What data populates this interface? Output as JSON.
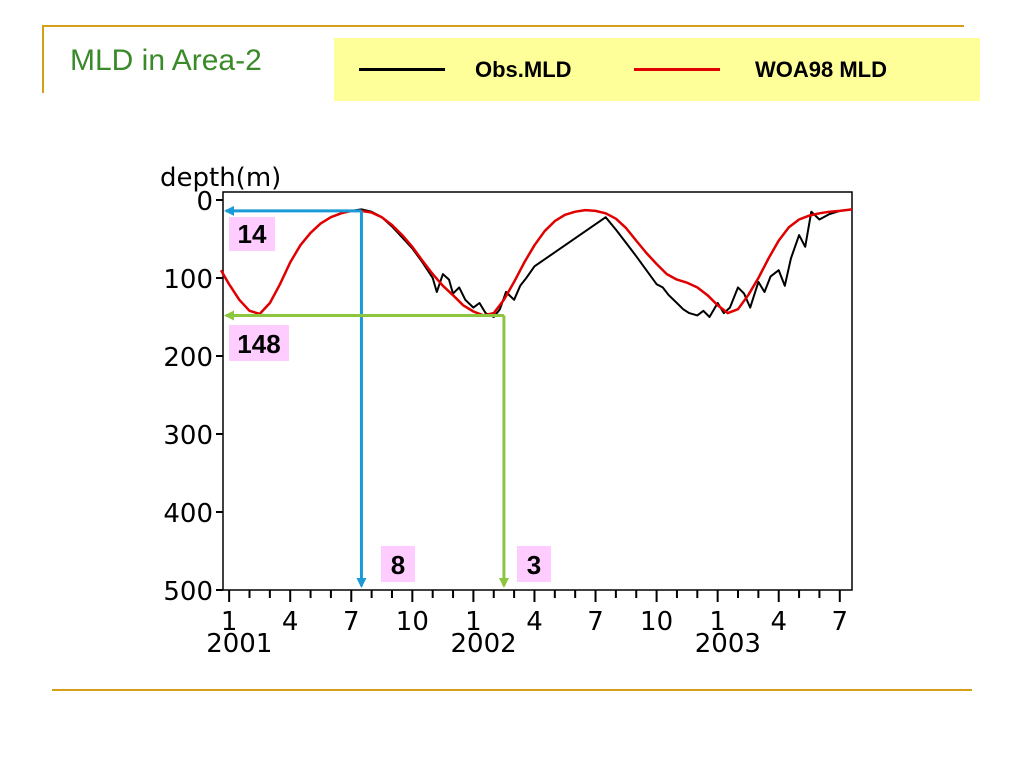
{
  "slide": {
    "title": "MLD in Area-2"
  },
  "legend": {
    "items": [
      {
        "label": "Obs.MLD",
        "color": "#000000"
      },
      {
        "label": "WOA98 MLD",
        "color": "#e00000"
      }
    ]
  },
  "colors": {
    "rule": "#d4a017",
    "title": "#3a8a2a",
    "legend_bg": "#ffff99",
    "callout_bg": "#ffccff",
    "blue_arrow": "#1a9ad6",
    "green_arrow": "#8cc63f"
  },
  "chart_data": {
    "type": "line",
    "ylabel": "depth(m)",
    "ylim": [
      0,
      500
    ],
    "y_inverted": true,
    "y_ticks": [
      0,
      100,
      200,
      300,
      400,
      500
    ],
    "xlim": [
      0.6,
      31.6
    ],
    "x_ticks": [
      {
        "x": 1,
        "label": "1"
      },
      {
        "x": 4,
        "label": "4"
      },
      {
        "x": 7,
        "label": "7"
      },
      {
        "x": 10,
        "label": "10"
      },
      {
        "x": 13,
        "label": "1"
      },
      {
        "x": 16,
        "label": "4"
      },
      {
        "x": 19,
        "label": "7"
      },
      {
        "x": 22,
        "label": "10"
      },
      {
        "x": 25,
        "label": "1"
      },
      {
        "x": 28,
        "label": "4"
      },
      {
        "x": 31,
        "label": "7"
      }
    ],
    "year_labels": [
      {
        "x": 1.5,
        "label": "2001"
      },
      {
        "x": 13.5,
        "label": "2002"
      },
      {
        "x": 25.5,
        "label": "2003"
      }
    ],
    "series": [
      {
        "name": "WOA98 MLD",
        "x": [
          0.6,
          1,
          1.5,
          2,
          2.5,
          3,
          3.5,
          4,
          4.5,
          5,
          5.5,
          6,
          6.5,
          7,
          7.5,
          8,
          8.5,
          9,
          9.5,
          10,
          10.5,
          11,
          11.5,
          12,
          12.5,
          13,
          13.5,
          14,
          14.5,
          15,
          15.5,
          16,
          16.5,
          17,
          17.5,
          18,
          18.5,
          19,
          19.5,
          20,
          20.5,
          21,
          21.5,
          22,
          22.5,
          23,
          23.5,
          24,
          24.5,
          25,
          25.5,
          26,
          26.5,
          27,
          27.5,
          28,
          28.5,
          29,
          29.5,
          30,
          30.5,
          31,
          31.6
        ],
        "values": [
          90,
          108,
          128,
          142,
          146,
          132,
          108,
          80,
          58,
          42,
          30,
          22,
          17,
          14,
          14,
          16,
          22,
          32,
          45,
          60,
          78,
          95,
          110,
          122,
          135,
          143,
          148,
          145,
          128,
          105,
          80,
          58,
          40,
          27,
          19,
          15,
          13,
          14,
          17,
          24,
          36,
          52,
          68,
          82,
          95,
          102,
          106,
          112,
          122,
          135,
          145,
          140,
          122,
          100,
          75,
          52,
          35,
          25,
          20,
          17,
          15,
          14,
          12
        ]
      },
      {
        "name": "Obs.MLD",
        "x": [
          7,
          7.5,
          8,
          8.5,
          9,
          9.5,
          10,
          10.5,
          11,
          11.2,
          11.5,
          11.8,
          12,
          12.3,
          12.6,
          13,
          13.3,
          13.6,
          14,
          14.3,
          14.6,
          15,
          15.3,
          15.6,
          16,
          19.5,
          20,
          20.5,
          21,
          21.5,
          22,
          22.3,
          22.6,
          23,
          23.3,
          23.6,
          24,
          24.3,
          24.6,
          25,
          25.3,
          25.6,
          26,
          26.3,
          26.6,
          27,
          27.3,
          27.6,
          28,
          28.3,
          28.6,
          29,
          29.3,
          29.6,
          30,
          30.5,
          31
        ],
        "values": [
          14,
          12,
          15,
          22,
          34,
          48,
          62,
          80,
          100,
          118,
          95,
          102,
          120,
          112,
          128,
          138,
          132,
          145,
          150,
          140,
          118,
          128,
          110,
          100,
          85,
          22,
          38,
          55,
          72,
          90,
          108,
          112,
          122,
          132,
          140,
          145,
          148,
          142,
          150,
          132,
          145,
          138,
          112,
          120,
          138,
          105,
          118,
          98,
          90,
          110,
          75,
          45,
          60,
          15,
          25,
          18,
          14
        ]
      }
    ],
    "annotations": [
      {
        "label": "14",
        "x": 7.5,
        "y": 14,
        "color": "blue"
      },
      {
        "label": "8",
        "x": 7.5,
        "y": 14,
        "color": "blue"
      },
      {
        "label": "148",
        "x": 14.5,
        "y": 148,
        "color": "green"
      },
      {
        "label": "3",
        "x": 14.5,
        "y": 148,
        "color": "green"
      }
    ]
  }
}
